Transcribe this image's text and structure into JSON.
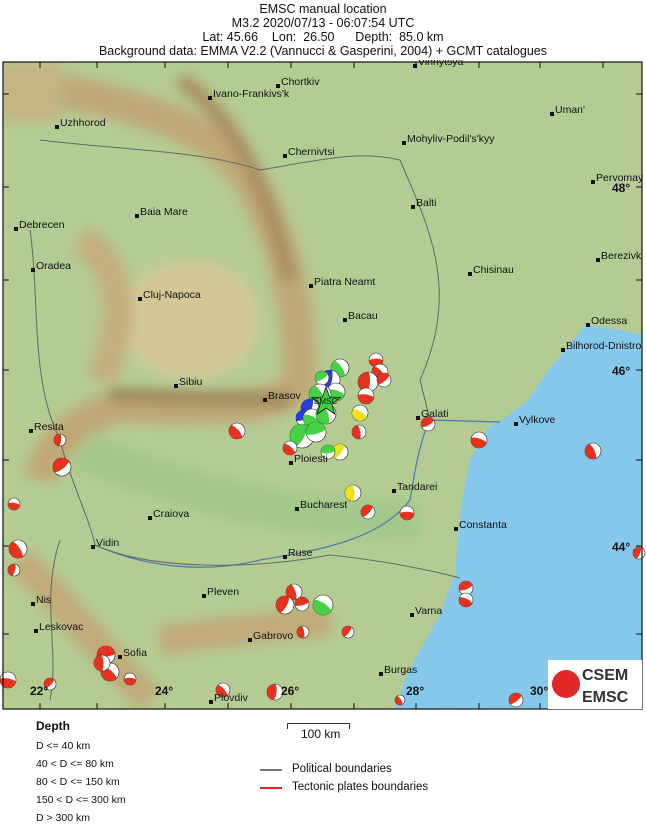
{
  "header": {
    "title": "EMSC manual location",
    "line2": "M3.2  2020/07/13 - 06:07:54 UTC",
    "line3": "Lat: 45.66    Lon:  26.50      Depth:  85.0 km",
    "line4": "Background data: EMMA V2.2 (Vannucci & Gasperini, 2004) + GCMT catalogues"
  },
  "map": {
    "epicenter_label": "EMSC",
    "cities": [
      "Vinnytsya",
      "Chortkiv",
      "Ivano-Frankivs'k",
      "Uman'",
      "Uzhhorod",
      "Mohyliv-Podil's'kyy",
      "Chernivtsi",
      "Pervomay",
      "Balti",
      "Debrecen",
      "Baia Mare",
      "Berezivk",
      "Oradea",
      "Chisinau",
      "Piatra Neamt",
      "Cluj-Napoca",
      "Bacau",
      "Odessa",
      "Bilhorod-Dnistro",
      "Sibiu",
      "Brasov",
      "Galati",
      "Vylkove",
      "Resita",
      "Ploiesti",
      "Tandarei",
      "Bucharest",
      "Craiova",
      "Constanta",
      "Vidin",
      "Ruse",
      "Pleven",
      "Nis",
      "Varna",
      "Leskovac",
      "Gabrovo",
      "Sofia",
      "Burgas",
      "Plovdiv"
    ],
    "lat_labels": [
      "48°",
      "46°",
      "44°"
    ],
    "lon_labels": [
      "22°",
      "24°",
      "26°",
      "28°",
      "30°"
    ],
    "colors": {
      "red": "#e8321e",
      "green": "#46d246",
      "blue": "#2a3ce0",
      "yellow": "#f0e01e",
      "star": "#3cd23c",
      "sea": "#86c8ec",
      "land": "#b4cc94"
    },
    "logo": {
      "top": "CSEM",
      "bottom": "EMSC"
    }
  },
  "legend": {
    "depth_title": "Depth",
    "depth_classes": [
      "D <= 40 km",
      "40 < D <= 80 km",
      "80 < D <= 150 km",
      "150 < D <= 300 km",
      "D > 300 km"
    ],
    "scale_label": "100 km",
    "political": "Political boundaries",
    "tectonic": "Tectonic plates boundaries"
  }
}
